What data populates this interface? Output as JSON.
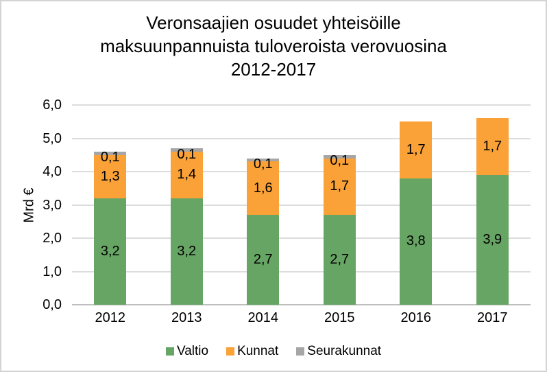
{
  "title": {
    "lines": [
      "Veronsaajien osuudet yhteisöille",
      "maksuunpannuista tuloveroista verovuosina",
      "2012-2017"
    ]
  },
  "chart_data": {
    "type": "bar",
    "stacked": true,
    "title": "Veronsaajien osuudet yhteisöille maksuunpannuista tuloveroista verovuosina 2012-2017",
    "categories": [
      "2012",
      "2013",
      "2014",
      "2015",
      "2016",
      "2017"
    ],
    "series": [
      {
        "name": "Valtio",
        "color": "#67A564",
        "values": [
          3.2,
          3.2,
          2.7,
          2.7,
          3.8,
          3.9
        ],
        "labels": [
          "3,2",
          "3,2",
          "2,7",
          "2,7",
          "3,8",
          "3,9"
        ]
      },
      {
        "name": "Kunnat",
        "color": "#FAA137",
        "values": [
          1.3,
          1.4,
          1.6,
          1.7,
          1.7,
          1.7
        ],
        "labels": [
          "1,3",
          "1,4",
          "1,6",
          "1,7",
          "1,7",
          "1,7"
        ]
      },
      {
        "name": "Seurakunnat",
        "color": "#A6A6A6",
        "values": [
          0.1,
          0.1,
          0.1,
          0.1,
          0,
          0
        ],
        "labels": [
          "0,1",
          "0,1",
          "0,1",
          "0,1",
          "",
          ""
        ]
      }
    ],
    "xlabel": "",
    "ylabel": "Mrd €",
    "ylim": [
      0,
      6
    ],
    "yticks": [
      0,
      1,
      2,
      3,
      4,
      5,
      6
    ],
    "ytick_labels": [
      "0,0",
      "1,0",
      "2,0",
      "3,0",
      "4,0",
      "5,0",
      "6,0"
    ],
    "grid": true,
    "legend_position": "bottom",
    "colors": {
      "gridline": "#DCDCDC",
      "axis_line": "#BFBFBF",
      "text": "#000000"
    }
  }
}
